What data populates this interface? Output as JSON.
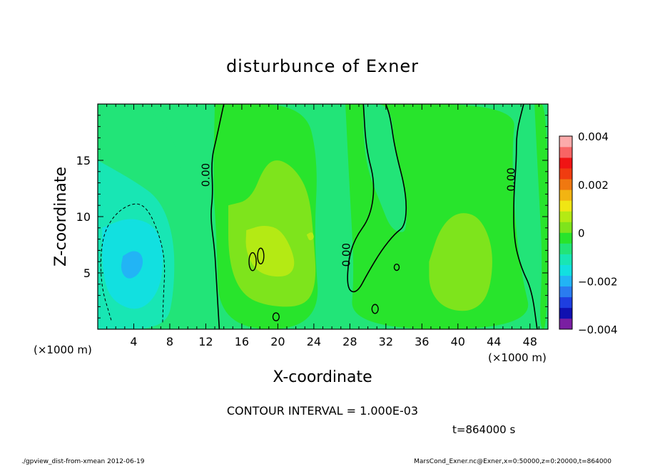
{
  "chart_data": {
    "type": "heatmap",
    "title": "disturbunce of Exner",
    "xlabel": "X-coordinate",
    "ylabel": "Z-coordinate",
    "x_unit": "(×1000 m)",
    "y_unit": "(×1000 m)",
    "x_range": [
      0,
      50
    ],
    "y_range": [
      0,
      20
    ],
    "x_ticks": [
      4,
      8,
      12,
      16,
      20,
      24,
      28,
      32,
      36,
      40,
      44,
      48
    ],
    "y_ticks": [
      5,
      10,
      15
    ],
    "contour_label": "0.00",
    "contour_interval_text": "CONTOUR INTERVAL = 1.000E-03",
    "time_text": "t=864000 s",
    "colorbar": {
      "range": [
        -0.004,
        0.004
      ],
      "tick_values": [
        0.004,
        0.002,
        0,
        -0.002,
        -0.004
      ],
      "tick_labels": [
        "0.004",
        "0.002",
        "0",
        "−0.002",
        "−0.004"
      ],
      "colors": [
        "#7a1fa2",
        "#1010b0",
        "#1e3ee0",
        "#2a7cf0",
        "#22b4f5",
        "#12e0e0",
        "#18e6b4",
        "#22e478",
        "#28e42c",
        "#7ee41c",
        "#b4ea14",
        "#f0e614",
        "#f2b412",
        "#f07810",
        "#f03c10",
        "#f01414",
        "#f86464",
        "#fcaaaa"
      ]
    },
    "regions": [
      {
        "level": 0.0002,
        "color": "#28e42c"
      },
      {
        "level": -0.0005,
        "color": "#22e478"
      },
      {
        "level": -0.001,
        "color": "#18e6b4"
      },
      {
        "level": -0.0015,
        "color": "#12e0e0"
      },
      {
        "level": -0.002,
        "color": "#22b4f5"
      },
      {
        "level": 0.0007,
        "color": "#7ee41c"
      },
      {
        "level": 0.0012,
        "color": "#b4ea14"
      }
    ]
  },
  "footer": {
    "left": "./gpview_dist-from-xmean  2012-06-19",
    "right": "MarsCond_Exner.nc@Exner,x=0:50000,z=0:20000,t=864000"
  }
}
